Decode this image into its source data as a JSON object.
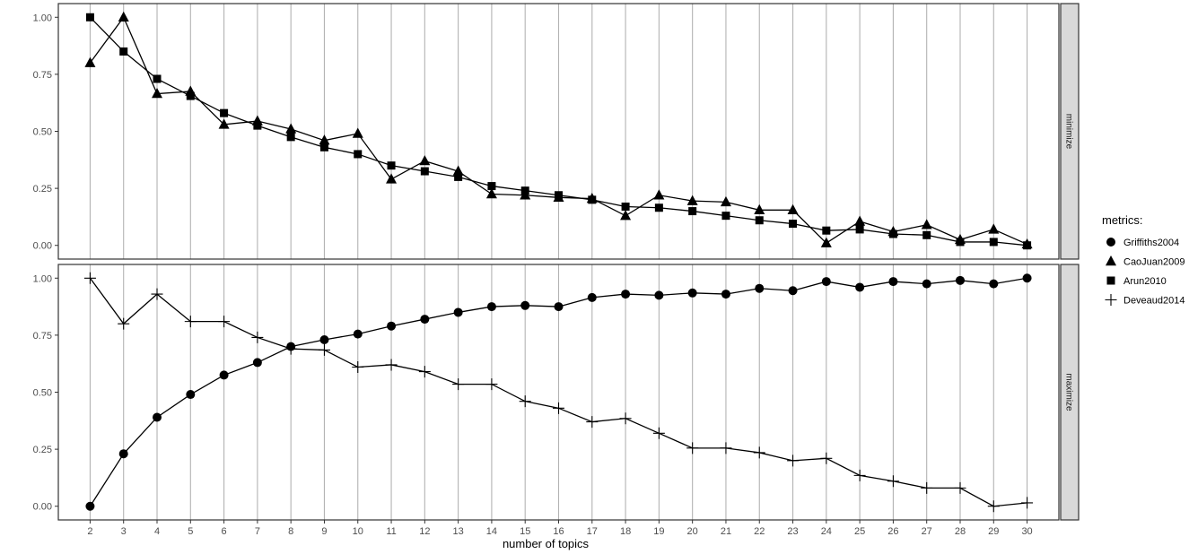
{
  "chart_data": {
    "type": "line",
    "xlabel": "number of topics",
    "x": [
      2,
      3,
      4,
      5,
      6,
      7,
      8,
      9,
      10,
      11,
      12,
      13,
      14,
      15,
      16,
      17,
      18,
      19,
      20,
      21,
      22,
      23,
      24,
      25,
      26,
      27,
      28,
      29,
      30
    ],
    "xticks": [
      "2",
      "3",
      "4",
      "5",
      "6",
      "7",
      "8",
      "9",
      "10",
      "11",
      "12",
      "13",
      "14",
      "15",
      "16",
      "17",
      "18",
      "19",
      "20",
      "21",
      "22",
      "23",
      "24",
      "25",
      "26",
      "27",
      "28",
      "29",
      "30"
    ],
    "ylim": [
      0,
      1
    ],
    "yticks": [
      "0.00",
      "0.25",
      "0.50",
      "0.75",
      "1.00"
    ],
    "grid": "vertical major lines at each x",
    "legend": {
      "title": "metrics:",
      "position": "right",
      "entries": [
        {
          "name": "Griffiths2004",
          "marker": "circle"
        },
        {
          "name": "CaoJuan2009",
          "marker": "triangle"
        },
        {
          "name": "Arun2010",
          "marker": "square"
        },
        {
          "name": "Deveaud2014",
          "marker": "plus"
        }
      ]
    },
    "panels": [
      {
        "strip": "minimize",
        "series": [
          {
            "name": "CaoJuan2009",
            "marker": "triangle",
            "values": [
              0.8,
              1.0,
              0.665,
              0.675,
              0.53,
              0.545,
              0.51,
              0.46,
              0.49,
              0.29,
              0.37,
              0.325,
              0.225,
              0.22,
              0.21,
              0.205,
              0.13,
              0.22,
              0.195,
              0.19,
              0.155,
              0.155,
              0.01,
              0.105,
              0.06,
              0.09,
              0.025,
              0.07,
              0.005
            ]
          },
          {
            "name": "Arun2010",
            "marker": "square",
            "values": [
              1.0,
              0.85,
              0.73,
              0.655,
              0.58,
              0.525,
              0.475,
              0.43,
              0.4,
              0.35,
              0.325,
              0.3,
              0.26,
              0.24,
              0.22,
              0.2,
              0.17,
              0.165,
              0.15,
              0.13,
              0.11,
              0.095,
              0.065,
              0.07,
              0.05,
              0.045,
              0.015,
              0.015,
              0.0
            ]
          }
        ]
      },
      {
        "strip": "maximize",
        "series": [
          {
            "name": "Griffiths2004",
            "marker": "circle",
            "values": [
              0.0,
              0.23,
              0.39,
              0.49,
              0.575,
              0.63,
              0.7,
              0.73,
              0.755,
              0.79,
              0.82,
              0.85,
              0.875,
              0.88,
              0.875,
              0.915,
              0.93,
              0.925,
              0.935,
              0.93,
              0.955,
              0.945,
              0.985,
              0.96,
              0.985,
              0.975,
              0.99,
              0.975,
              1.0
            ]
          },
          {
            "name": "Deveaud2014",
            "marker": "plus",
            "values": [
              1.0,
              0.8,
              0.93,
              0.81,
              0.81,
              0.74,
              0.69,
              0.685,
              0.61,
              0.62,
              0.59,
              0.535,
              0.535,
              0.46,
              0.43,
              0.37,
              0.385,
              0.32,
              0.255,
              0.255,
              0.235,
              0.2,
              0.21,
              0.135,
              0.11,
              0.08,
              0.08,
              0.0,
              0.015
            ]
          }
        ]
      }
    ]
  }
}
